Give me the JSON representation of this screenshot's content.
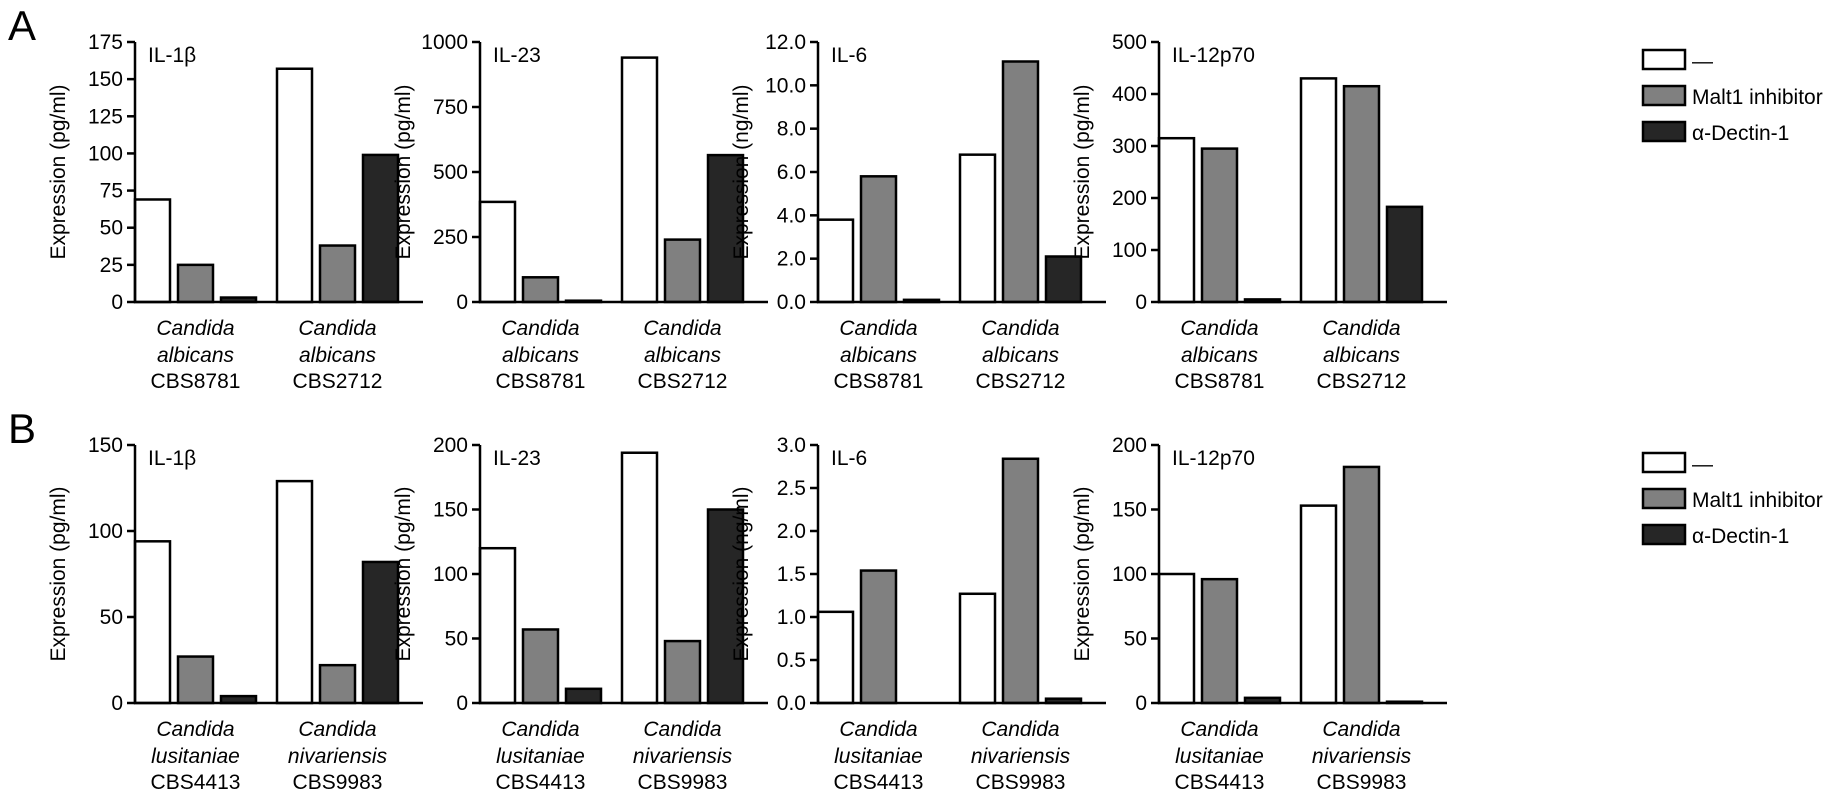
{
  "figure": {
    "panel_labels": [
      "A",
      "B"
    ],
    "legend": [
      {
        "label": "—",
        "color": "#ffffff"
      },
      {
        "label": "Malt1 inhibitor",
        "color": "#808080"
      },
      {
        "label": "α-Dectin-1",
        "color": "#262626"
      }
    ]
  },
  "chart_data": [
    {
      "type": "bar",
      "panel": "A",
      "title": "IL-1β",
      "ylabel": "Expression (pg/ml)",
      "ylim": [
        0,
        175
      ],
      "yticks": [
        "0",
        "25",
        "50",
        "75",
        "100",
        "125",
        "150",
        "175"
      ],
      "groups": [
        {
          "line1": "Candida",
          "line2": "albicans",
          "line3": "CBS8781"
        },
        {
          "line1": "Candida",
          "line2": "albicans",
          "line3": "CBS2712"
        }
      ],
      "series": [
        {
          "name": "—",
          "values": [
            69,
            157
          ]
        },
        {
          "name": "Malt1 inhibitor",
          "values": [
            25,
            38
          ]
        },
        {
          "name": "α-Dectin-1",
          "values": [
            3,
            99
          ]
        }
      ]
    },
    {
      "type": "bar",
      "panel": "A",
      "title": "IL-23",
      "ylabel": "Expression (pg/ml)",
      "ylim": [
        0,
        1000
      ],
      "yticks": [
        "0",
        "250",
        "500",
        "750",
        "1000"
      ],
      "groups": [
        {
          "line1": "Candida",
          "line2": "albicans",
          "line3": "CBS8781"
        },
        {
          "line1": "Candida",
          "line2": "albicans",
          "line3": "CBS2712"
        }
      ],
      "series": [
        {
          "name": "—",
          "values": [
            385,
            940
          ]
        },
        {
          "name": "Malt1 inhibitor",
          "values": [
            95,
            240
          ]
        },
        {
          "name": "α-Dectin-1",
          "values": [
            5,
            565
          ]
        }
      ]
    },
    {
      "type": "bar",
      "panel": "A",
      "title": "IL-6",
      "ylabel": "Expression (ng/ml)",
      "ylim": [
        0,
        12
      ],
      "yticks": [
        "0.0",
        "2.0",
        "4.0",
        "6.0",
        "8.0",
        "10.0",
        "12.0"
      ],
      "groups": [
        {
          "line1": "Candida",
          "line2": "albicans",
          "line3": "CBS8781"
        },
        {
          "line1": "Candida",
          "line2": "albicans",
          "line3": "CBS2712"
        }
      ],
      "series": [
        {
          "name": "—",
          "values": [
            3.8,
            6.8
          ]
        },
        {
          "name": "Malt1 inhibitor",
          "values": [
            5.8,
            11.1
          ]
        },
        {
          "name": "α-Dectin-1",
          "values": [
            0.1,
            2.1
          ]
        }
      ]
    },
    {
      "type": "bar",
      "panel": "A",
      "title": "IL-12p70",
      "ylabel": "Expression (pg/ml)",
      "ylim": [
        0,
        500
      ],
      "yticks": [
        "0",
        "100",
        "200",
        "300",
        "400",
        "500"
      ],
      "groups": [
        {
          "line1": "Candida",
          "line2": "albicans",
          "line3": "CBS8781"
        },
        {
          "line1": "Candida",
          "line2": "albicans",
          "line3": "CBS2712"
        }
      ],
      "series": [
        {
          "name": "—",
          "values": [
            315,
            430
          ]
        },
        {
          "name": "Malt1 inhibitor",
          "values": [
            295,
            415
          ]
        },
        {
          "name": "α-Dectin-1",
          "values": [
            5,
            183
          ]
        }
      ]
    },
    {
      "type": "bar",
      "panel": "B",
      "title": "IL-1β",
      "ylabel": "Expression (pg/ml)",
      "ylim": [
        0,
        150
      ],
      "yticks": [
        "0",
        "50",
        "100",
        "150"
      ],
      "groups": [
        {
          "line1": "Candida",
          "line2": "lusitaniae",
          "line3": "CBS4413"
        },
        {
          "line1": "Candida",
          "line2": "nivariensis",
          "line3": "CBS9983"
        }
      ],
      "series": [
        {
          "name": "—",
          "values": [
            94,
            129
          ]
        },
        {
          "name": "Malt1 inhibitor",
          "values": [
            27,
            22
          ]
        },
        {
          "name": "α-Dectin-1",
          "values": [
            4,
            82
          ]
        }
      ]
    },
    {
      "type": "bar",
      "panel": "B",
      "title": "IL-23",
      "ylabel": "Expression (pg/ml)",
      "ylim": [
        0,
        200
      ],
      "yticks": [
        "0",
        "50",
        "100",
        "150",
        "200"
      ],
      "groups": [
        {
          "line1": "Candida",
          "line2": "lusitaniae",
          "line3": "CBS4413"
        },
        {
          "line1": "Candida",
          "line2": "nivariensis",
          "line3": "CBS9983"
        }
      ],
      "series": [
        {
          "name": "—",
          "values": [
            120,
            194
          ]
        },
        {
          "name": "Malt1 inhibitor",
          "values": [
            57,
            48
          ]
        },
        {
          "name": "α-Dectin-1",
          "values": [
            11,
            150
          ]
        }
      ]
    },
    {
      "type": "bar",
      "panel": "B",
      "title": "IL-6",
      "ylabel": "Expression (ng/ml)",
      "ylim": [
        0,
        3
      ],
      "yticks": [
        "0.0",
        "0.5",
        "1.0",
        "1.5",
        "2.0",
        "2.5",
        "3.0"
      ],
      "groups": [
        {
          "line1": "Candida",
          "line2": "lusitaniae",
          "line3": "CBS4413"
        },
        {
          "line1": "Candida",
          "line2": "nivariensis",
          "line3": "CBS9983"
        }
      ],
      "series": [
        {
          "name": "—",
          "values": [
            1.06,
            1.27
          ]
        },
        {
          "name": "Malt1 inhibitor",
          "values": [
            1.54,
            2.84
          ]
        },
        {
          "name": "α-Dectin-1",
          "values": [
            0,
            0.05
          ]
        }
      ]
    },
    {
      "type": "bar",
      "panel": "B",
      "title": "IL-12p70",
      "ylabel": "Expression (pg/ml)",
      "ylim": [
        0,
        200
      ],
      "yticks": [
        "0",
        "50",
        "100",
        "150",
        "200"
      ],
      "groups": [
        {
          "line1": "Candida",
          "line2": "lusitaniae",
          "line3": "CBS4413"
        },
        {
          "line1": "Candida",
          "line2": "nivariensis",
          "line3": "CBS9983"
        }
      ],
      "series": [
        {
          "name": "—",
          "values": [
            100,
            153
          ]
        },
        {
          "name": "Malt1 inhibitor",
          "values": [
            96,
            183
          ]
        },
        {
          "name": "α-Dectin-1",
          "values": [
            4,
            1
          ]
        }
      ]
    }
  ]
}
